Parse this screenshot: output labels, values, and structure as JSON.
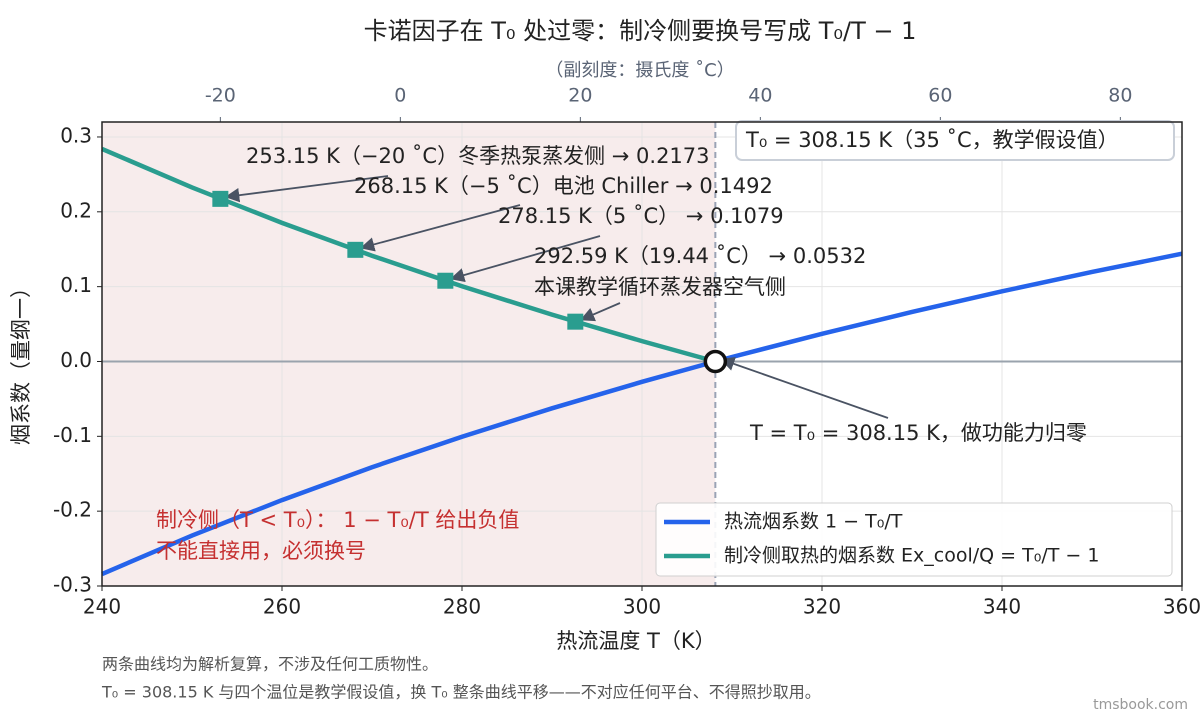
{
  "chart_data": {
    "type": "line",
    "title": "卡诺因子在 T₀ 处过零：制冷侧要换号写成 T₀/T − 1",
    "x2_label": "（副刻度：摄氏度 ˚C）",
    "x_label": "热流温度 T（K）",
    "y_label": "烟系数（量纲一）",
    "x": [
      240,
      250,
      260,
      270,
      280,
      290,
      300,
      308.15,
      310,
      320,
      330,
      340,
      350,
      360
    ],
    "series": [
      {
        "name": "热流烟系数  1 − T₀/T",
        "color": "#2563eb",
        "values": [
          -0.284,
          -0.2326,
          -0.1852,
          -0.1413,
          -0.1005,
          -0.0626,
          -0.0272,
          0,
          0.006,
          0.037,
          0.0662,
          0.0937,
          0.1196,
          0.144
        ]
      },
      {
        "name": "制冷侧取热的烟系数  Ex_cool/Q = T₀/T − 1",
        "color": "#2a9d8f",
        "values": [
          0.284,
          0.2326,
          0.1852,
          0.1413,
          0.1005,
          0.0626,
          0.0272,
          0,
          null,
          null,
          null,
          null,
          null,
          null
        ]
      }
    ],
    "markers": {
      "color": "#2a9d8f",
      "x": [
        253.15,
        268.15,
        278.15,
        292.59
      ],
      "values": [
        0.2173,
        0.1492,
        0.1079,
        0.0532
      ]
    },
    "reference_point": {
      "x": 308.15,
      "y": 0
    },
    "vline": 308.15,
    "xlim": [
      240,
      360
    ],
    "xticks": [
      240,
      260,
      280,
      300,
      320,
      340,
      360
    ],
    "x2lim": [
      -33.15,
      86.85
    ],
    "x2ticks": [
      -20,
      0,
      20,
      40,
      60,
      80
    ],
    "ylim": [
      -0.3,
      0.32
    ],
    "yticks": [
      -0.3,
      -0.2,
      -0.1,
      {
        "value": 0,
        "label": "0.0"
      },
      0.1,
      0.2,
      0.3
    ],
    "grid": true,
    "legend": "lower right",
    "annotations": [
      {
        "lines": [
          "253.15 K（−20 ˚C）冬季热泵蒸发侧 → 0.2173"
        ],
        "x": 253.15,
        "y": 0.2173
      },
      {
        "lines": [
          "268.15 K（−5 ˚C）电池 Chiller → 0.1492"
        ],
        "x": 268.15,
        "y": 0.1492
      },
      {
        "lines": [
          "278.15 K（5 ˚C） → 0.1079"
        ],
        "x": 278.15,
        "y": 0.1079
      },
      {
        "lines": [
          "292.59 K（19.44 ˚C） → 0.0532",
          "本课教学循环蒸发器空气侧"
        ],
        "x": 292.59,
        "y": 0.0532
      },
      {
        "lines": [
          "T = T₀ = 308.15 K，做功能力归零"
        ],
        "x": 308.15,
        "y": 0
      }
    ],
    "info_box": "T₀ = 308.15 K（35 ˚C，教学假设值）",
    "region_note": [
      "制冷侧（T < T₀）： 1 − T₀/T 给出负值",
      "不能直接用，必须换号"
    ],
    "notes": [
      "两条曲线均为解析复算，不涉及任何工质物性。",
      "T₀ = 308.15 K 与四个温位是教学假设值，换 T₀ 整条曲线平移——不对应任何平台、不得照抄取用。"
    ],
    "watermark": "tmsbook.com"
  }
}
